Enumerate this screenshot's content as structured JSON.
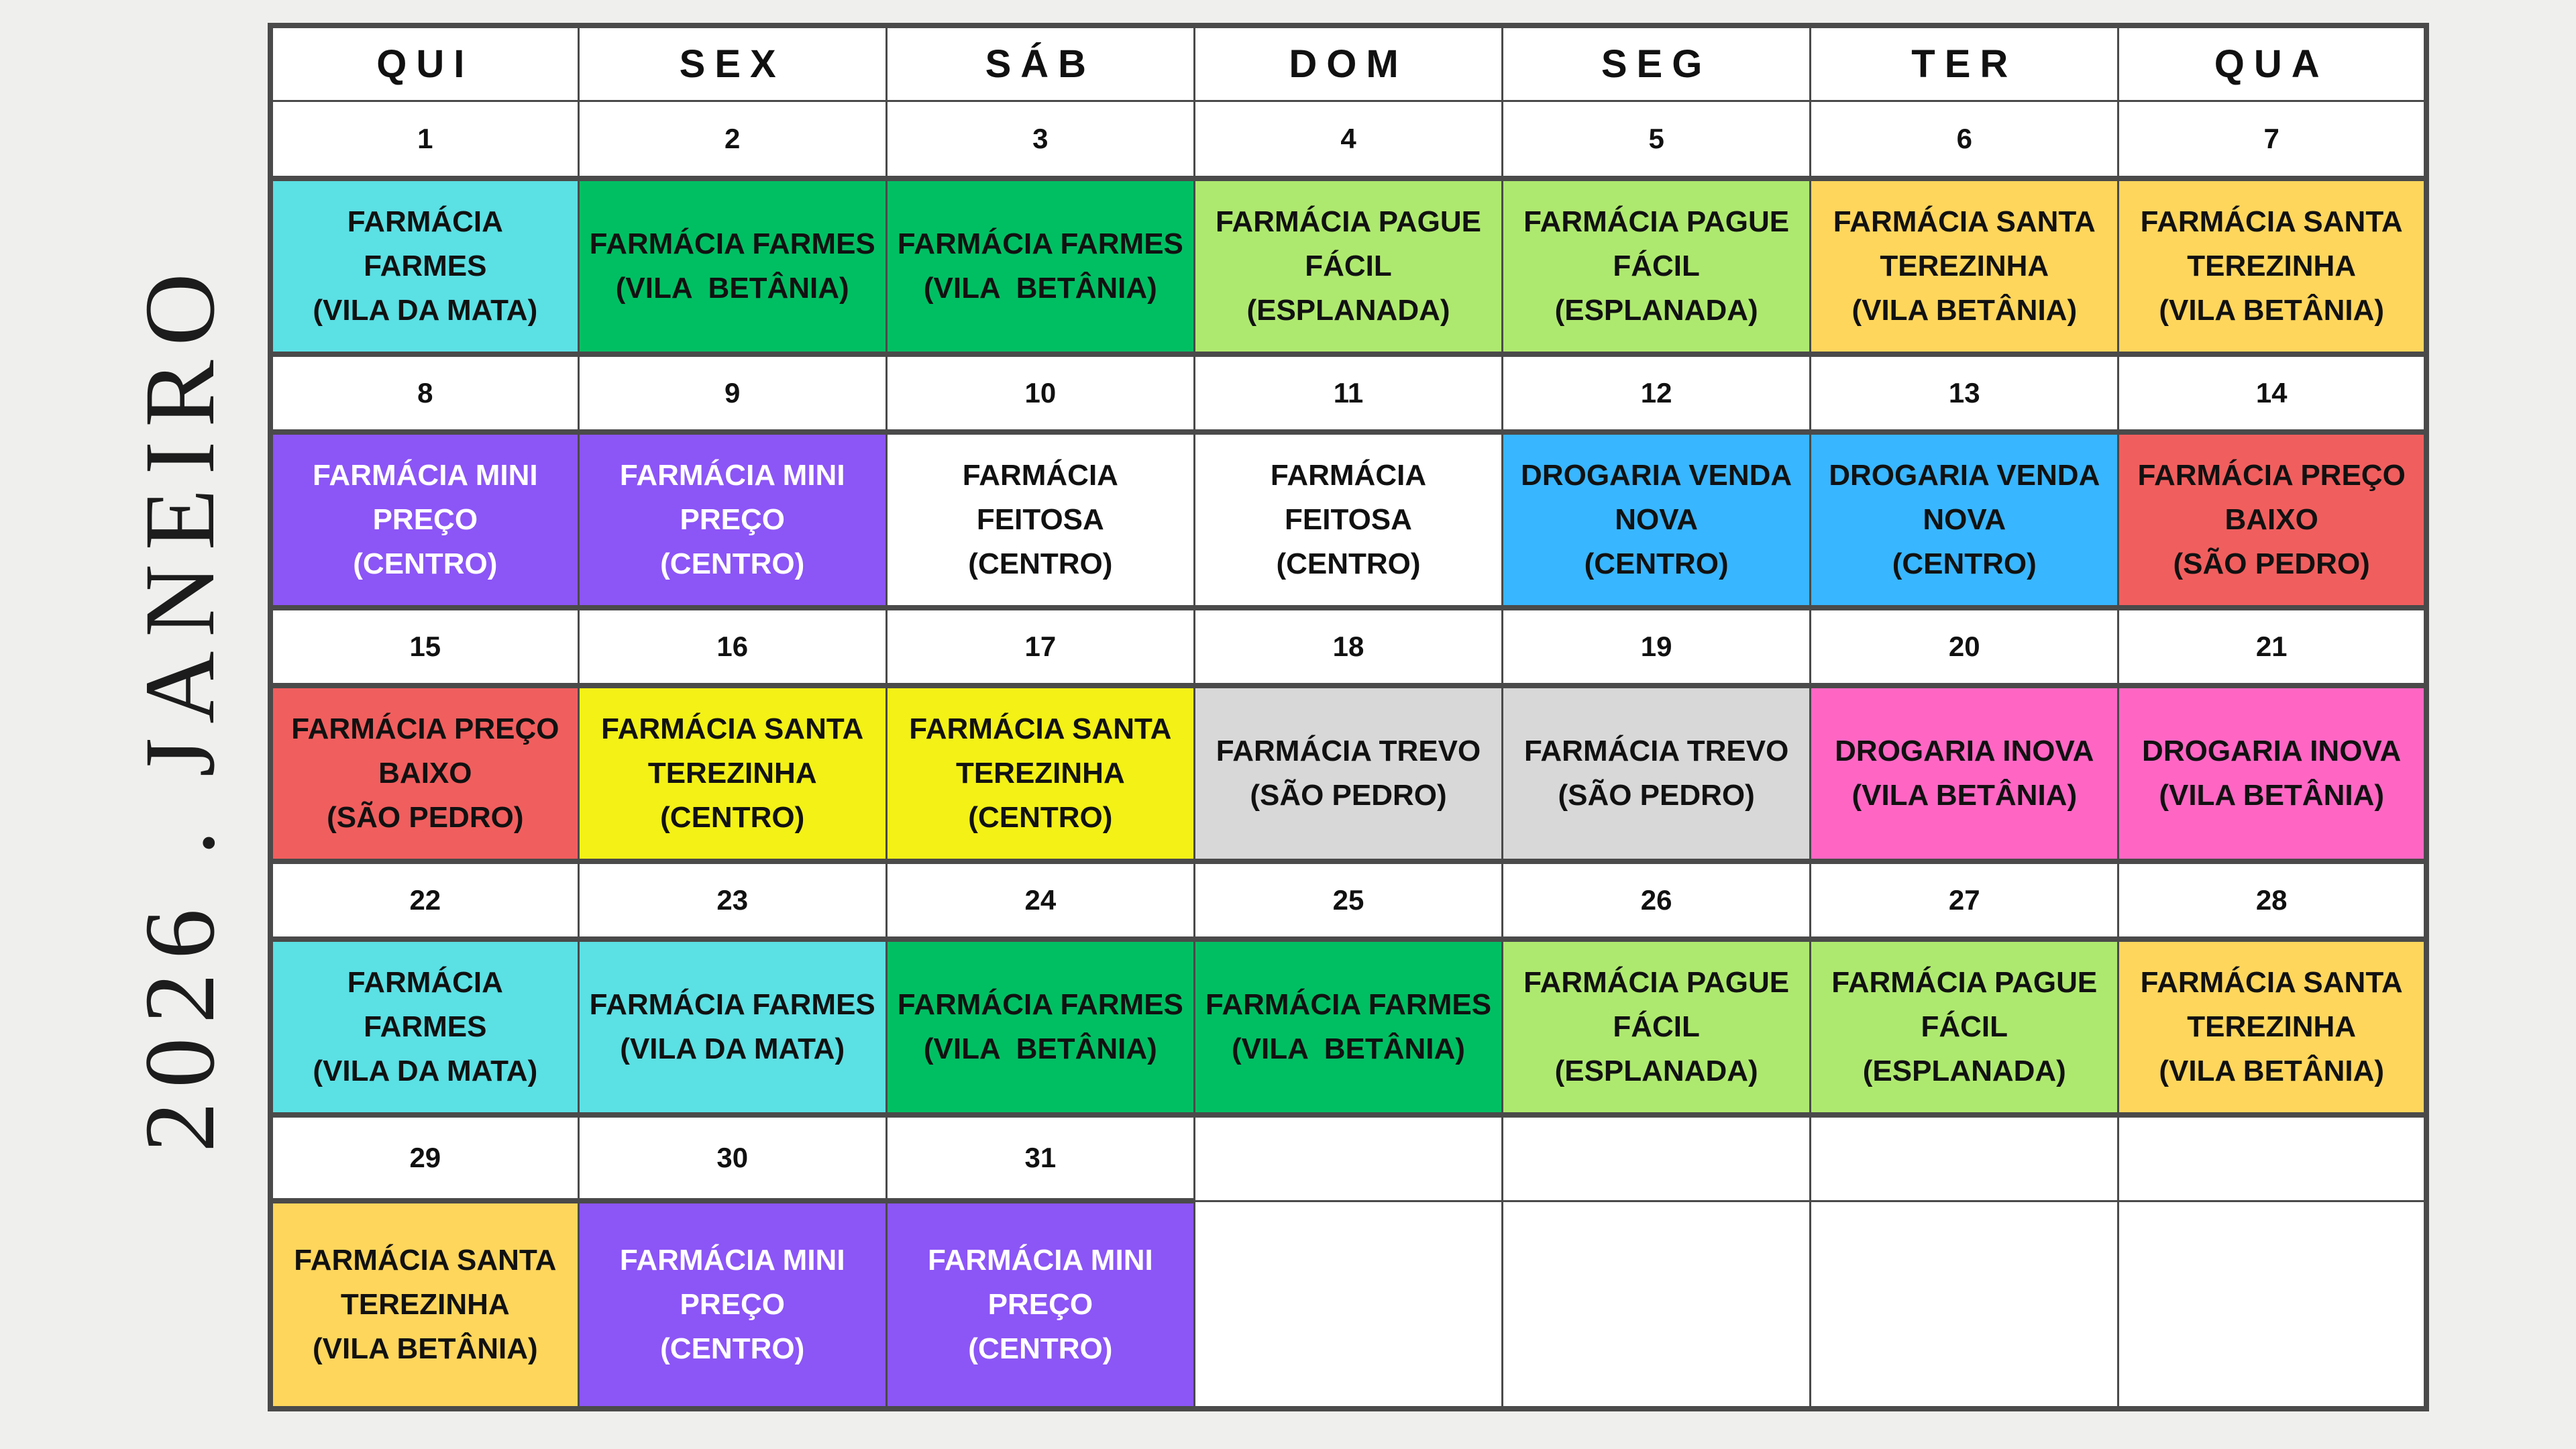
{
  "page": {
    "background": "#EFEFED",
    "grid_color": "#4A4A4A"
  },
  "sidebar": {
    "title": "2026 . JANEIRO"
  },
  "calendar": {
    "weekdays": [
      "QUI",
      "SEX",
      "SÁB",
      "DOM",
      "SEG",
      "TER",
      "QUA"
    ],
    "colors": {
      "cyan": "#5BE0E4",
      "green": "#00BF63",
      "light_green": "#AEE96F",
      "gold": "#FFD65C",
      "purple": "#8C55F6",
      "blue": "#38B6FF",
      "red": "#F15E5E",
      "yellow": "#F3F116",
      "gray": "#D8D8D8",
      "pink": "#FF66C4",
      "white": "#FFFFFF"
    },
    "weeks": [
      {
        "day_numbers": [
          "1",
          "2",
          "3",
          "4",
          "5",
          "6",
          "7"
        ],
        "cells": [
          {
            "lines": [
              "FARMÁCIA FARMES",
              "(VILA DA MATA)"
            ],
            "color": "cyan"
          },
          {
            "lines": [
              "FARMÁCIA FARMES",
              "(VILA  BETÂNIA)"
            ],
            "color": "green"
          },
          {
            "lines": [
              "FARMÁCIA FARMES",
              "(VILA  BETÂNIA)"
            ],
            "color": "green"
          },
          {
            "lines": [
              "FARMÁCIA PAGUE",
              "FÁCIL",
              "(ESPLANADA)"
            ],
            "color": "light_green"
          },
          {
            "lines": [
              "FARMÁCIA PAGUE",
              "FÁCIL",
              "(ESPLANADA)"
            ],
            "color": "light_green"
          },
          {
            "lines": [
              "FARMÁCIA SANTA",
              "TEREZINHA",
              "(VILA BETÂNIA)"
            ],
            "color": "gold"
          },
          {
            "lines": [
              "FARMÁCIA SANTA",
              "TEREZINHA",
              "(VILA BETÂNIA)"
            ],
            "color": "gold"
          }
        ]
      },
      {
        "day_numbers": [
          "8",
          "9",
          "10",
          "11",
          "12",
          "13",
          "14"
        ],
        "cells": [
          {
            "lines": [
              "FARMÁCIA MINI",
              "PREÇO",
              "(CENTRO)"
            ],
            "color": "purple",
            "fg": "white"
          },
          {
            "lines": [
              "FARMÁCIA MINI",
              "PREÇO",
              "(CENTRO)"
            ],
            "color": "purple",
            "fg": "white"
          },
          {
            "lines": [
              "FARMÁCIA FEITOSA",
              "(CENTRO)"
            ],
            "color": "white"
          },
          {
            "lines": [
              "FARMÁCIA FEITOSA",
              "(CENTRO)"
            ],
            "color": "white"
          },
          {
            "lines": [
              "DROGARIA VENDA",
              "NOVA",
              "(CENTRO)"
            ],
            "color": "blue"
          },
          {
            "lines": [
              "DROGARIA VENDA",
              "NOVA",
              "(CENTRO)"
            ],
            "color": "blue"
          },
          {
            "lines": [
              "FARMÁCIA PREÇO",
              "BAIXO",
              "(SÃO PEDRO)"
            ],
            "color": "red"
          }
        ]
      },
      {
        "day_numbers": [
          "15",
          "16",
          "17",
          "18",
          "19",
          "20",
          "21"
        ],
        "cells": [
          {
            "lines": [
              "FARMÁCIA PREÇO",
              "BAIXO",
              "(SÃO PEDRO)"
            ],
            "color": "red"
          },
          {
            "lines": [
              "FARMÁCIA SANTA",
              "TEREZINHA",
              "(CENTRO)"
            ],
            "color": "yellow"
          },
          {
            "lines": [
              "FARMÁCIA SANTA",
              "TEREZINHA",
              "(CENTRO)"
            ],
            "color": "yellow"
          },
          {
            "lines": [
              "FARMÁCIA TREVO",
              "(SÃO PEDRO)"
            ],
            "color": "gray"
          },
          {
            "lines": [
              "FARMÁCIA TREVO",
              "(SÃO PEDRO)"
            ],
            "color": "gray"
          },
          {
            "lines": [
              "DROGARIA INOVA",
              "(VILA BETÂNIA)"
            ],
            "color": "pink"
          },
          {
            "lines": [
              "DROGARIA INOVA",
              "(VILA BETÂNIA)"
            ],
            "color": "pink"
          }
        ]
      },
      {
        "day_numbers": [
          "22",
          "23",
          "24",
          "25",
          "26",
          "27",
          "28"
        ],
        "cells": [
          {
            "lines": [
              "FARMÁCIA FARMES",
              "(VILA DA MATA)"
            ],
            "color": "cyan"
          },
          {
            "lines": [
              "FARMÁCIA FARMES",
              "(VILA DA MATA)"
            ],
            "color": "cyan"
          },
          {
            "lines": [
              "FARMÁCIA FARMES",
              "(VILA  BETÂNIA)"
            ],
            "color": "green"
          },
          {
            "lines": [
              "FARMÁCIA FARMES",
              "(VILA  BETÂNIA)"
            ],
            "color": "green"
          },
          {
            "lines": [
              "FARMÁCIA PAGUE",
              "FÁCIL",
              "(ESPLANADA)"
            ],
            "color": "light_green"
          },
          {
            "lines": [
              "FARMÁCIA PAGUE",
              "FÁCIL",
              "(ESPLANADA)"
            ],
            "color": "light_green"
          },
          {
            "lines": [
              "FARMÁCIA SANTA",
              "TEREZINHA",
              "(VILA BETÂNIA)"
            ],
            "color": "gold"
          }
        ]
      },
      {
        "day_numbers": [
          "29",
          "30",
          "31",
          "",
          "",
          "",
          ""
        ],
        "cells": [
          {
            "lines": [
              "FARMÁCIA SANTA",
              "TEREZINHA",
              "(VILA BETÂNIA)"
            ],
            "color": "gold"
          },
          {
            "lines": [
              "FARMÁCIA MINI",
              "PREÇO",
              "(CENTRO)"
            ],
            "color": "purple",
            "fg": "white"
          },
          {
            "lines": [
              "FARMÁCIA MINI",
              "PREÇO",
              "(CENTRO)"
            ],
            "color": "purple",
            "fg": "white"
          },
          {},
          {},
          {},
          {}
        ]
      }
    ]
  }
}
